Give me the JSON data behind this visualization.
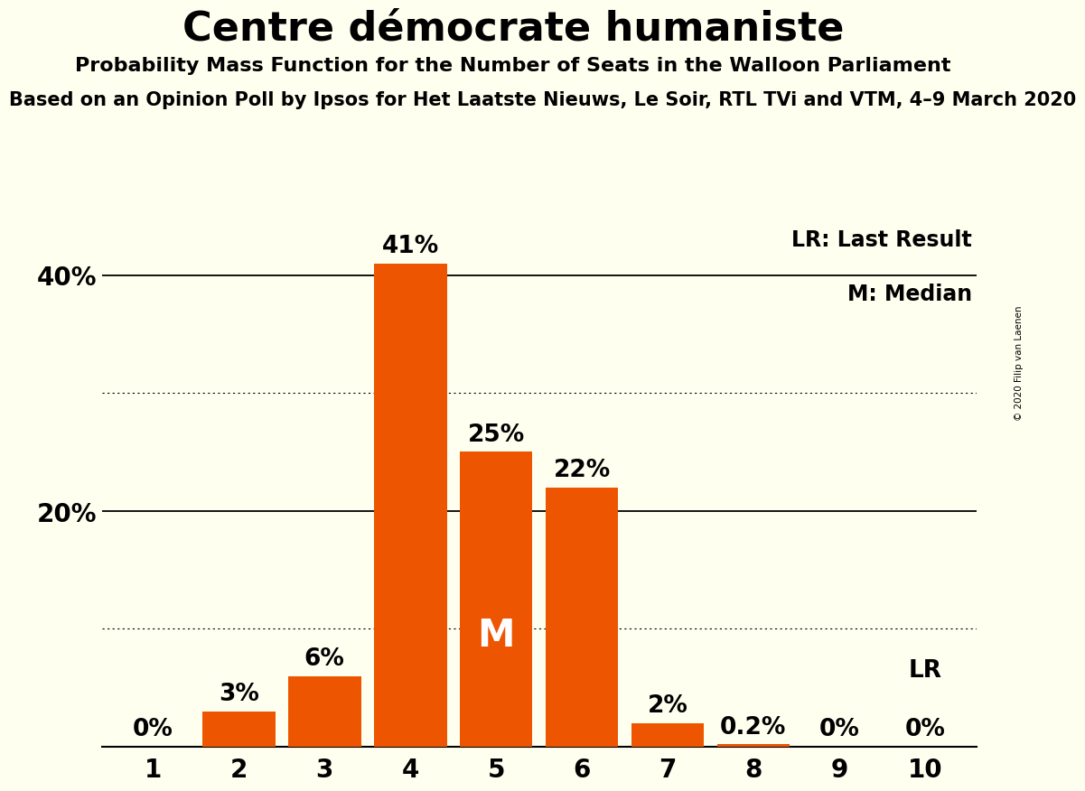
{
  "title": "Centre démocrate humaniste",
  "subtitle": "Probability Mass Function for the Number of Seats in the Walloon Parliament",
  "subtitle2": "Based on an Opinion Poll by Ipsos for Het Laatste Nieuws, Le Soir, RTL TVi and VTM, 4–9 March 2020",
  "copyright": "© 2020 Filip van Laenen",
  "categories": [
    1,
    2,
    3,
    4,
    5,
    6,
    7,
    8,
    9,
    10
  ],
  "values": [
    0,
    3,
    6,
    41,
    25,
    22,
    2,
    0.2,
    0,
    0
  ],
  "labels": [
    "0%",
    "3%",
    "6%",
    "41%",
    "25%",
    "22%",
    "2%",
    "0.2%",
    "0%",
    "0%"
  ],
  "bar_color": "#EE5500",
  "background_color": "#FFFFF0",
  "median_bar_idx": 4,
  "median_label": "M",
  "lr_bar_idx": 9,
  "lr_label": "LR",
  "legend_lr": "LR: Last Result",
  "legend_m": "M: Median",
  "yticks": [
    0,
    10,
    20,
    30,
    40
  ],
  "ytick_labels": [
    "",
    "",
    "20%",
    "",
    "40%"
  ],
  "dotted_grid": [
    10,
    30
  ],
  "solid_grid": [
    20,
    40
  ],
  "ylim_max": 46,
  "xlim_min": 0.4,
  "xlim_max": 10.6,
  "title_fontsize": 32,
  "subtitle_fontsize": 16,
  "subtitle2_fontsize": 15,
  "tick_label_fontsize": 20,
  "bar_label_fontsize": 19,
  "legend_fontsize": 17,
  "median_fontsize": 30,
  "lr_label_fontsize": 19
}
